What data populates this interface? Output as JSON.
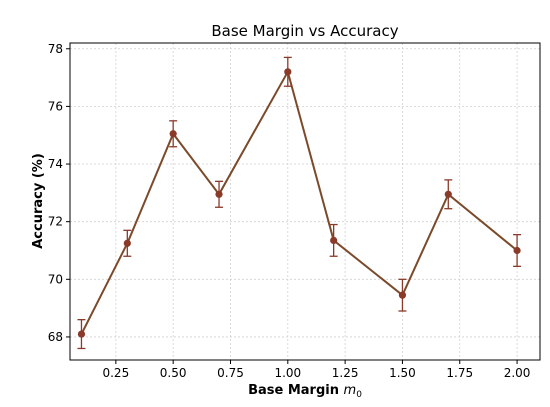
{
  "chart_data": {
    "type": "line",
    "title": "Base Margin vs Accuracy",
    "xlabel": "Base Margin",
    "xlabel_symbol": "m",
    "xlabel_subscript": "0",
    "ylabel": "Accuracy (%)",
    "xlim": [
      0.05,
      2.1
    ],
    "ylim": [
      67.2,
      78.2
    ],
    "xticks": [
      0.25,
      0.5,
      0.75,
      1.0,
      1.25,
      1.5,
      1.75,
      2.0
    ],
    "yticks": [
      68,
      70,
      72,
      74,
      76,
      78
    ],
    "grid": true,
    "series": [
      {
        "color": "#7b4a2a",
        "marker_color": "#8b3a2a",
        "x": [
          0.1,
          0.3,
          0.5,
          0.7,
          1.0,
          1.2,
          1.5,
          1.7,
          2.0
        ],
        "y": [
          68.1,
          71.25,
          75.05,
          72.95,
          77.2,
          71.35,
          69.45,
          72.95,
          71.0
        ],
        "err": [
          0.5,
          0.45,
          0.45,
          0.45,
          0.5,
          0.55,
          0.55,
          0.5,
          0.55
        ]
      }
    ]
  }
}
